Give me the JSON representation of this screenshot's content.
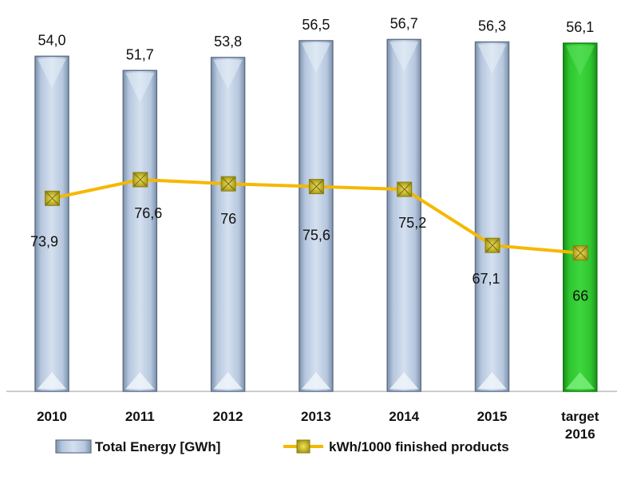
{
  "chart_data": {
    "type": "bar",
    "categories": [
      "2010",
      "2011",
      "2012",
      "2013",
      "2014",
      "2015",
      "target 2016"
    ],
    "series": [
      {
        "name": "Total Energy [GWh]",
        "kind": "bar",
        "values": [
          54.0,
          51.7,
          53.8,
          56.5,
          56.7,
          56.3,
          56.1
        ],
        "labels": [
          "54,0",
          "51,7",
          "53,8",
          "56,5",
          "56,7",
          "56,3",
          "56,1"
        ],
        "color": "#b8c9e0",
        "highlight_color": "#2dbf2d"
      },
      {
        "name": "kWh/1000 finished products",
        "kind": "line",
        "values": [
          73.9,
          76.6,
          76,
          75.6,
          75.2,
          67.1,
          66
        ],
        "labels": [
          "73,9",
          "76,6",
          "76",
          "75,6",
          "75,2",
          "67,1",
          "66"
        ],
        "color": "#f5b800",
        "marker_color": "#d6c200"
      }
    ],
    "highlighted_category": "target 2016",
    "legend_placement": "bottom",
    "grid": false
  }
}
